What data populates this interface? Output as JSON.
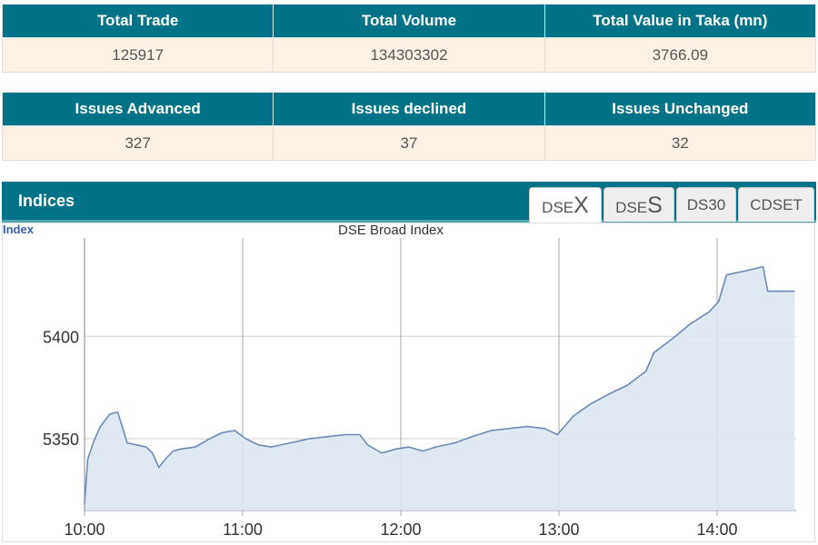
{
  "summary1": {
    "headers": [
      "Total Trade",
      "Total Volume",
      "Total Value in Taka (mn)"
    ],
    "values": [
      "125917",
      "134303302",
      "3766.09"
    ]
  },
  "summary2": {
    "headers": [
      "Issues Advanced",
      "Issues declined",
      "Issues Unchanged"
    ],
    "values": [
      "327",
      "37",
      "32"
    ]
  },
  "indices": {
    "title": "Indices",
    "tabs": [
      {
        "prefix": "DSE",
        "big": "X"
      },
      {
        "prefix": "DSE",
        "big": "S"
      },
      {
        "prefix": "DS30",
        "big": ""
      },
      {
        "prefix": "CDSET",
        "big": ""
      }
    ],
    "active_tab": 0
  },
  "colors": {
    "header": "#007389",
    "line": "#6a8bb5",
    "fill": "#dde6f0"
  },
  "chart_data": {
    "type": "area",
    "title": "DSE Broad Index",
    "ylabel": "Index",
    "xlabel": "",
    "xlim": [
      10,
      14.5
    ],
    "ylim": [
      5315,
      5448
    ],
    "xticks": [
      {
        "v": 10,
        "label": "10:00"
      },
      {
        "v": 11,
        "label": "11:00"
      },
      {
        "v": 12,
        "label": "12:00"
      },
      {
        "v": 13,
        "label": "13:00"
      },
      {
        "v": 14,
        "label": "14:00"
      }
    ],
    "yticks": [
      {
        "v": 5350,
        "label": "5350"
      },
      {
        "v": 5400,
        "label": "5400"
      }
    ],
    "grid": true,
    "series": [
      {
        "name": "DSEX",
        "x": [
          10.0,
          10.02,
          10.06,
          10.1,
          10.16,
          10.21,
          10.27,
          10.33,
          10.39,
          10.43,
          10.47,
          10.51,
          10.56,
          10.61,
          10.7,
          10.79,
          10.87,
          10.95,
          11.02,
          11.1,
          11.18,
          11.3,
          11.42,
          11.53,
          11.65,
          11.74,
          11.79,
          11.88,
          11.97,
          12.05,
          12.14,
          12.22,
          12.34,
          12.45,
          12.57,
          12.68,
          12.8,
          12.91,
          12.99,
          13.09,
          13.2,
          13.32,
          13.43,
          13.55,
          13.6,
          13.72,
          13.83,
          13.95,
          14.01,
          14.06,
          14.18,
          14.29,
          14.32,
          14.49
        ],
        "y": [
          5318,
          5340,
          5349,
          5356,
          5362,
          5363,
          5348,
          5347,
          5346,
          5343,
          5336,
          5340,
          5344,
          5345,
          5346,
          5350,
          5353,
          5354,
          5350,
          5347,
          5346,
          5348,
          5350,
          5351,
          5352,
          5352,
          5347,
          5343,
          5345,
          5346,
          5344,
          5346,
          5348,
          5351,
          5354,
          5355,
          5356,
          5355,
          5352,
          5361,
          5367,
          5372,
          5376,
          5383,
          5392,
          5399,
          5406,
          5412,
          5417,
          5430,
          5432,
          5434,
          5422,
          5422
        ]
      }
    ]
  }
}
